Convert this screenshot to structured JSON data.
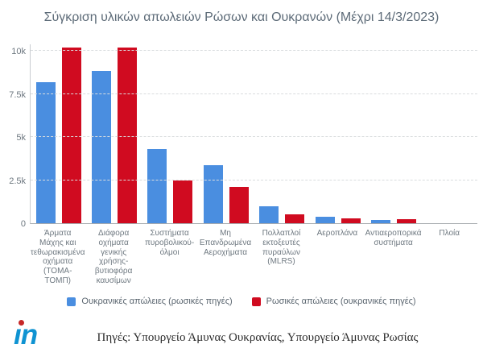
{
  "title": "Σύγκριση υλικών απωλειών Ρώσων και Ουκρανών (Μέχρι 14/3/2023)",
  "source_text": "Πηγές: Υπουργείο Άμυνας Ουκρανίας, Υπουργείο Άμυνας Ρωσίας",
  "logo": {
    "text_body": "ın",
    "dot_color": "#c62828",
    "text_color": "#0f93d2"
  },
  "legend": {
    "items": [
      {
        "label": "Ουκρανικές απώλειες (ρωσικές πηγές)",
        "color": "#4a8ee0"
      },
      {
        "label": "Ρωσικές απώλειες (ουκρανικές πηγές)",
        "color": "#d00b20"
      }
    ]
  },
  "chart_data": {
    "type": "bar",
    "title": "Σύγκριση υλικών απωλειών Ρώσων και Ουκρανών (Μέχρι 14/3/2023)",
    "categories": [
      "Άρματα\nΜάχης και\nτεθωρακισμένα\nοχήματα\n(ΤΟΜΑ-\nΤΟΜΠ)",
      "Διάφορα\nοχήματα\nγενικής\nχρήσης-\nβυτιοφόρα\nκαυσίμων",
      "Συστήματα\nπυροβολικού-\nόλμοι",
      "Μη\nΕπανδρωμένα\nΑεροχήματα",
      "Πολλαπλοί\nεκτοξευτές\nπυραύλων\n(MLRS)",
      "Αεροπλάνα",
      "Αντιαεροπορικά\nσυστήματα",
      "Πλοία"
    ],
    "series": [
      {
        "name": "Ουκρανικές απώλειες (ρωσικές πηγές)",
        "color": "#4a8ee0",
        "values": [
          8200,
          8850,
          4300,
          3350,
          1000,
          370,
          170,
          0
        ]
      },
      {
        "name": "Ρωσικές απώλειες (ουκρανικές πηγές)",
        "color": "#d00b20",
        "values": [
          10200,
          10200,
          2500,
          2100,
          500,
          300,
          230,
          0
        ]
      }
    ],
    "xlabel": "",
    "ylabel": "",
    "ylim": [
      0,
      10000
    ],
    "yticks": {
      "values": [
        0,
        2500,
        5000,
        7500,
        10000
      ],
      "labels": [
        "0",
        "2.5k",
        "5k",
        "7.5k",
        "10k"
      ]
    },
    "grid": "dashed horizontal",
    "legend_position": "bottom"
  }
}
